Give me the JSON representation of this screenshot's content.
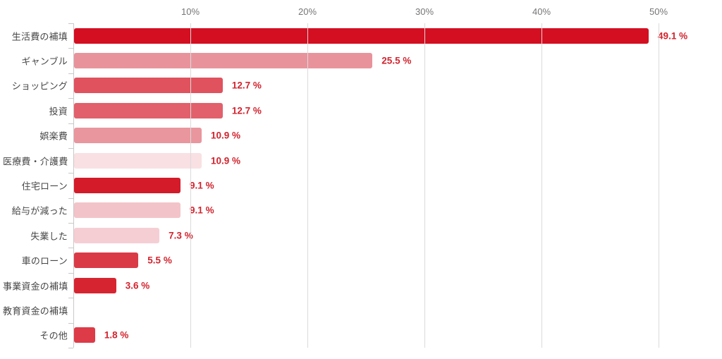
{
  "chart_data": {
    "type": "bar",
    "orientation": "horizontal",
    "title": "",
    "xlabel": "",
    "ylabel": "",
    "categories": [
      "生活費の補填",
      "ギャンブル",
      "ショッピング",
      "投資",
      "娯楽費",
      "医療費・介護費",
      "住宅ローン",
      "給与が減った",
      "失業した",
      "車のローン",
      "事業資金の補填",
      "教育資金の補填",
      "その他"
    ],
    "values": [
      49.1,
      25.5,
      12.7,
      12.7,
      10.9,
      10.9,
      9.1,
      9.1,
      7.3,
      5.5,
      3.6,
      0,
      1.8
    ],
    "value_labels": [
      "49.1 %",
      "25.5 %",
      "12.7 %",
      "12.7 %",
      "10.9 %",
      "10.9 %",
      "9.1 %",
      "9.1 %",
      "7.3 %",
      "5.5 %",
      "3.6 %",
      "",
      "1.8 %"
    ],
    "bar_colors": [
      "#d30f21",
      "#e8939c",
      "#e0525e",
      "#e2606b",
      "#e9969e",
      "#f9e0e3",
      "#d41b29",
      "#f2c4c9",
      "#f5ced3",
      "#da3a46",
      "#d62531",
      "none",
      "#dd3b47"
    ],
    "x_ticks": [
      "10%",
      "20%",
      "30%",
      "40%",
      "50%"
    ],
    "x_tick_values": [
      10,
      20,
      30,
      40,
      50
    ],
    "xlim": [
      0,
      54.6
    ],
    "grid": true,
    "legend": "none",
    "colors": {
      "value_label": "#d2242e",
      "axis_label": "#757575",
      "category_label": "#474747",
      "gridline": "#dadada",
      "axis_line": "#c9c9c9",
      "background": "#ffffff"
    }
  }
}
